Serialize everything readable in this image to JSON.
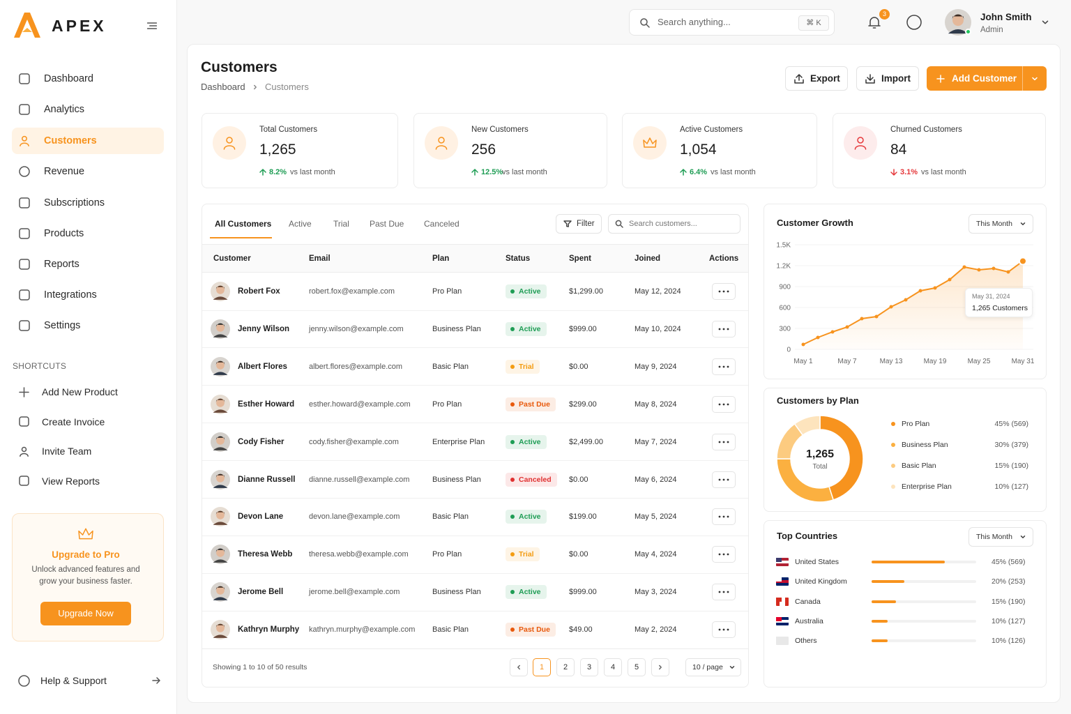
{
  "brand": "APEX",
  "nav": [
    {
      "label": "Dashboard"
    },
    {
      "label": "Analytics"
    },
    {
      "label": "Customers",
      "active": true
    },
    {
      "label": "Revenue"
    },
    {
      "label": "Subscriptions"
    },
    {
      "label": "Products"
    },
    {
      "label": "Reports"
    },
    {
      "label": "Integrations"
    },
    {
      "label": "Settings"
    }
  ],
  "shortcuts_title": "SHORTCUTS",
  "shortcuts": [
    "Add New Product",
    "Create Invoice",
    "Invite Team",
    "View Reports"
  ],
  "upgrade": {
    "title": "Upgrade to Pro",
    "text": "Unlock advanced features and grow your business faster.",
    "button": "Upgrade Now"
  },
  "help": "Help & Support",
  "topbar": {
    "search": "Search anything...",
    "shortcut": "⌘ K",
    "notifications": 3,
    "user": "John Smith",
    "role": "Admin"
  },
  "page": {
    "title": "Customers",
    "breadcrumb": [
      "Dashboard",
      "Customers"
    ],
    "buttons": [
      "Export",
      "Import",
      "Add Customer"
    ]
  },
  "stats": [
    {
      "label": "Total Customers",
      "value": "1,265",
      "change": "8.2%",
      "trend": "up",
      "note": "vs last month"
    },
    {
      "label": "New Customers",
      "value": "256",
      "change": "12.5%",
      "trend": "up",
      "note": "vs last month"
    },
    {
      "label": "Active Customers",
      "value": "1,054",
      "change": "6.4%",
      "trend": "up",
      "note": "vs last month"
    },
    {
      "label": "Churned Customers",
      "value": "84",
      "change": "3.1%",
      "trend": "down",
      "note": "vs last month"
    }
  ],
  "trend_colors": {
    "up": "#1f9d55",
    "down": "#e5383b"
  },
  "tabs": [
    "All Customers",
    "Active",
    "Trial",
    "Past Due",
    "Canceled"
  ],
  "filter": "Filter",
  "table_search": "Search customers...",
  "table": {
    "columns": [
      "Customer",
      "Email",
      "Plan",
      "Status",
      "Spent",
      "Joined",
      "Actions"
    ],
    "rows": [
      [
        "Robert Fox",
        "robert.fox@example.com",
        "Pro Plan",
        "Active",
        "$1,299.00",
        "May 12, 2024"
      ],
      [
        "Jenny Wilson",
        "jenny.wilson@example.com",
        "Business Plan",
        "Active",
        "$999.00",
        "May 10, 2024"
      ],
      [
        "Albert Flores",
        "albert.flores@example.com",
        "Basic Plan",
        "Trial",
        "$0.00",
        "May 9, 2024"
      ],
      [
        "Esther Howard",
        "esther.howard@example.com",
        "Pro Plan",
        "Past Due",
        "$299.00",
        "May 8, 2024"
      ],
      [
        "Cody Fisher",
        "cody.fisher@example.com",
        "Enterprise Plan",
        "Active",
        "$2,499.00",
        "May 7, 2024"
      ],
      [
        "Dianne Russell",
        "dianne.russell@example.com",
        "Business Plan",
        "Canceled",
        "$0.00",
        "May 6, 2024"
      ],
      [
        "Devon Lane",
        "devon.lane@example.com",
        "Basic Plan",
        "Active",
        "$199.00",
        "May 5, 2024"
      ],
      [
        "Theresa Webb",
        "theresa.webb@example.com",
        "Pro Plan",
        "Trial",
        "$0.00",
        "May 4, 2024"
      ],
      [
        "Jerome Bell",
        "jerome.bell@example.com",
        "Business Plan",
        "Active",
        "$999.00",
        "May 3, 2024"
      ],
      [
        "Kathryn Murphy",
        "kathryn.murphy@example.com",
        "Basic Plan",
        "Past Due",
        "$49.00",
        "May 2, 2024"
      ]
    ],
    "status_colors": {
      "Active": "#1f9d55",
      "Trial": "#f39c12",
      "Past Due": "#e8590c",
      "Canceled": "#e03131"
    }
  },
  "pagination": {
    "summary": "Showing 1 to 10 of 50 results",
    "pages": [
      1,
      2,
      3,
      4,
      5
    ],
    "current": 1,
    "page_size": "10 / page"
  },
  "growth": {
    "type": "line",
    "title": "Customer Growth",
    "range": "This Month",
    "color": "#f7931e",
    "x": [
      1,
      3,
      5,
      7,
      9,
      11,
      13,
      15,
      17,
      19,
      21,
      23,
      25,
      27,
      29,
      31
    ],
    "values": [
      70,
      170,
      250,
      320,
      440,
      470,
      610,
      710,
      840,
      880,
      1000,
      1180,
      1140,
      1160,
      1110,
      1265
    ],
    "xlim": [
      1,
      31
    ],
    "xticks": [
      {
        "value": 1,
        "label": "May 1"
      },
      {
        "value": 7,
        "label": "May 7"
      },
      {
        "value": 13,
        "label": "May 13"
      },
      {
        "value": 19,
        "label": "May 19"
      },
      {
        "value": 25,
        "label": "May 25"
      },
      {
        "value": 31,
        "label": "May 31"
      }
    ],
    "ylim": [
      0,
      1500
    ],
    "yticks": [
      0,
      300,
      600,
      900,
      {
        "value": 1200,
        "label": "1.2K"
      },
      {
        "value": 1500,
        "label": "1.5K"
      }
    ],
    "tooltip": {
      "date": "May 31, 2024",
      "text": "1,265 Customers"
    }
  },
  "plans": {
    "type": "pie",
    "title": "Customers by Plan",
    "center_value": "1,265",
    "center_label": "Total",
    "categories": [
      "Pro Plan",
      "Business Plan",
      "Basic Plan",
      "Enterprise Plan"
    ],
    "values": [
      45,
      30,
      15,
      10
    ],
    "value_labels": [
      "45% (569)",
      "30% (379)",
      "15% (190)",
      "10% (127)"
    ],
    "colors": [
      "#f7931e",
      "#fbb040",
      "#fccb80",
      "#fde4bd"
    ]
  },
  "countries": {
    "type": "bar",
    "title": "Top Countries",
    "range": "This Month",
    "categories": [
      "United States",
      "United Kingdom",
      "Canada",
      "Australia",
      "Others"
    ],
    "values": [
      45,
      20,
      15,
      10,
      10
    ],
    "value_labels": [
      "45% (569)",
      "20% (253)",
      "15% (190)",
      "10% (127)",
      "10% (126)"
    ],
    "xlim": [
      0,
      64
    ],
    "color": "#f7931e"
  }
}
